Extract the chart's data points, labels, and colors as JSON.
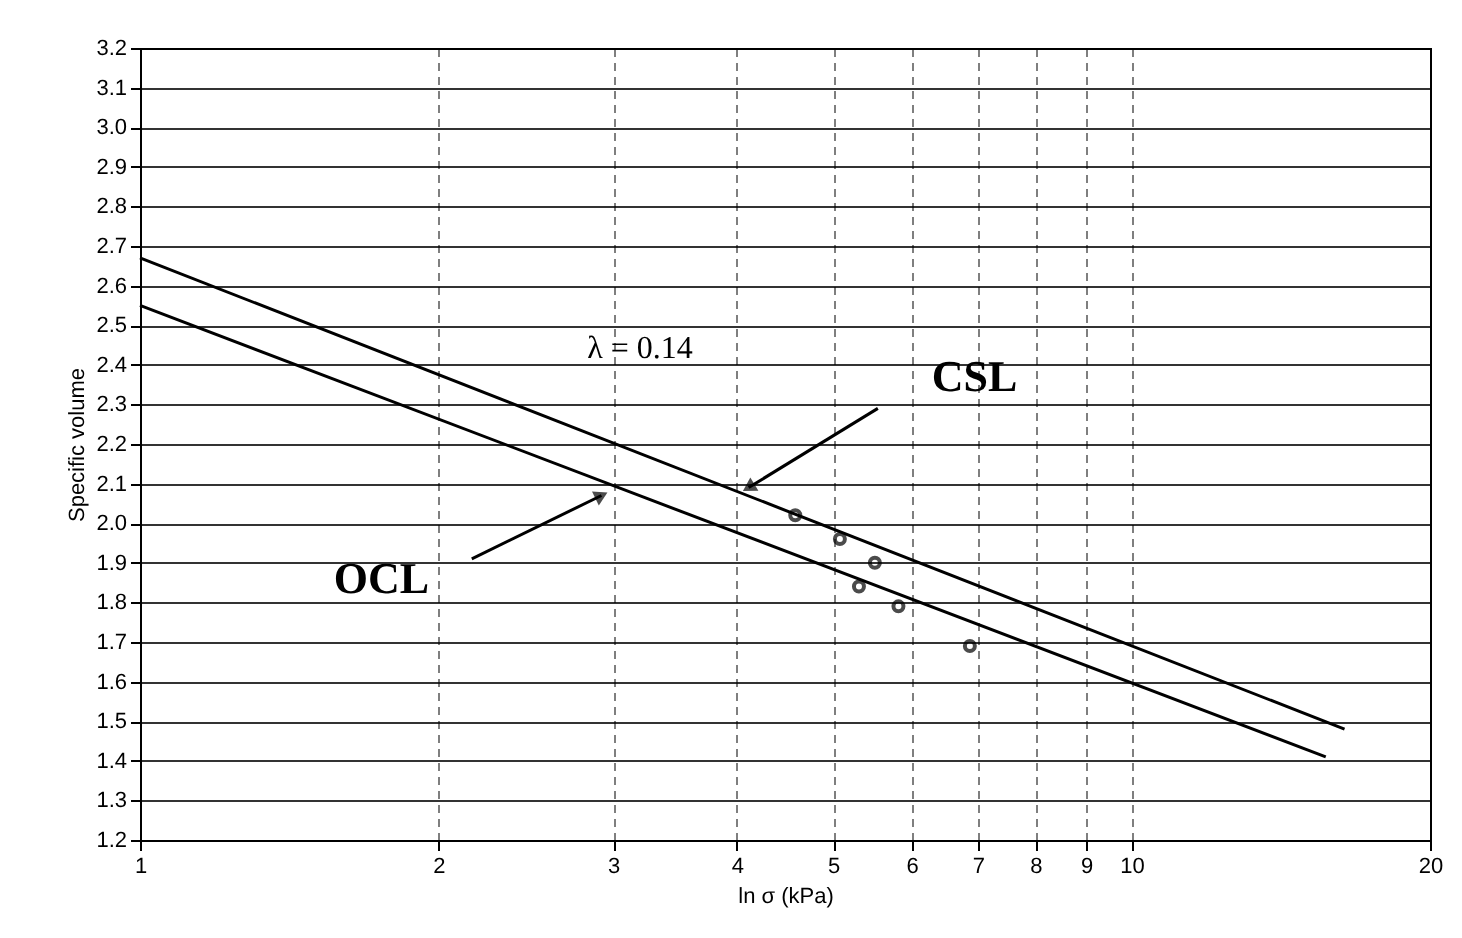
{
  "chart_data": {
    "type": "line",
    "xlabel": "ln σ (kPa)",
    "ylabel": "Specific volume",
    "log": "x",
    "xlim": [
      1,
      20
    ],
    "ylim": [
      1.2,
      3.2
    ],
    "xticks": [
      1,
      2,
      3,
      4,
      5,
      6,
      7,
      8,
      9,
      10,
      20
    ],
    "yticks": [
      1.2,
      1.3,
      1.4,
      1.5,
      1.6,
      1.7,
      1.8,
      1.9,
      {
        "value": 2,
        "label": "2.0"
      },
      2.1,
      2.2,
      2.3,
      2.4,
      2.5,
      2.6,
      2.7,
      2.8,
      2.9,
      {
        "value": 3,
        "label": "3.0"
      },
      3.1,
      3.2
    ],
    "grid": true,
    "line_style": "solid",
    "series": [
      {
        "color": "#000000",
        "x": [
          1,
          16.4
        ],
        "values": [
          2.67,
          1.48
        ]
      },
      {
        "color": "#000000",
        "x": [
          1,
          15.7
        ],
        "values": [
          2.55,
          1.41
        ]
      },
      {
        "type": "scatter",
        "marker": "circle",
        "color": "#000000",
        "x": [
          4.58,
          5.08,
          5.51,
          5.31,
          5.82,
          6.87
        ],
        "values": [
          2.02,
          1.96,
          1.9,
          1.84,
          1.79,
          1.69
        ]
      }
    ],
    "annotations": [
      "λ = 0.14",
      {
        "text": "CSL",
        "x": 4.11,
        "y": 2.09
      },
      {
        "text": "OCL",
        "x": 2.92,
        "y": 2.07
      }
    ]
  }
}
